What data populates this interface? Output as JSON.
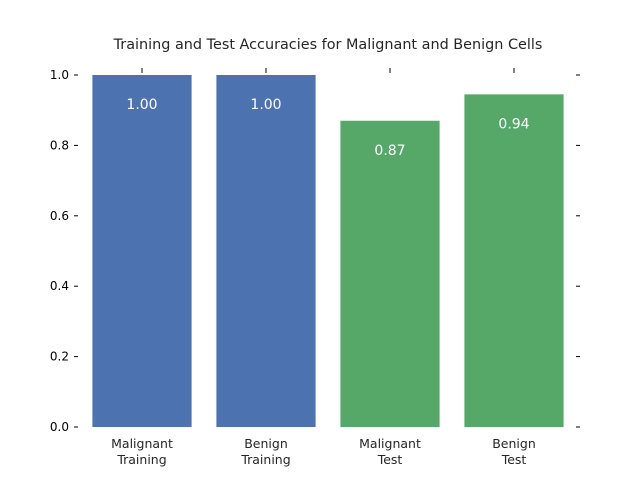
{
  "chart_data": {
    "type": "bar",
    "title": "Training and Test Accuracies for Malignant and Benign Cells",
    "categories": [
      [
        "Malignant",
        "Training"
      ],
      [
        "Benign",
        "Training"
      ],
      [
        "Malignant",
        "Test"
      ],
      [
        "Benign",
        "Test"
      ]
    ],
    "values": [
      1.0,
      1.0,
      0.87,
      0.945
    ],
    "value_labels": [
      "1.00",
      "1.00",
      "0.87",
      "0.94"
    ],
    "bar_colors": [
      "#4c72b0",
      "#4c72b0",
      "#55a868",
      "#55a868"
    ],
    "ylim": [
      0,
      1.0
    ],
    "yticks": [
      0.0,
      0.2,
      0.4,
      0.6,
      0.8,
      1.0
    ],
    "ytick_labels": [
      "0.0",
      "0.2",
      "0.4",
      "0.6",
      "0.8",
      "1.0"
    ],
    "xlabel": "",
    "ylabel": "",
    "grid": false,
    "legend": false
  }
}
